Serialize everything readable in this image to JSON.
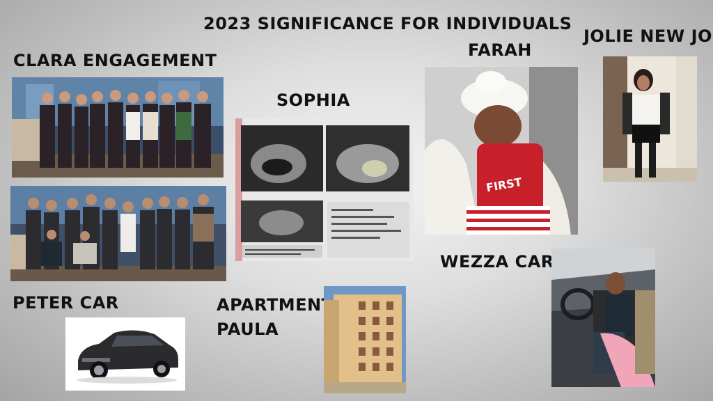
{
  "title": "2023 SIGNIFICANCE FOR INDIVIDUALS",
  "labels": {
    "clara": "CLARA ENGAGEMENT",
    "sophia": "SOPHIA",
    "farah": "FARAH",
    "jolie": "JOLIE NEW JOB",
    "peter": "PETER CAR",
    "apartment_line1": "APARTMENT",
    "apartment_line2": "PAULA",
    "wezza": "WEZZA CAR"
  },
  "photo_texts": {
    "onesie": "FIRST"
  },
  "colors": {
    "background": "#bdbdbd",
    "text": "#111111",
    "onesie_red": "#c8202a"
  }
}
